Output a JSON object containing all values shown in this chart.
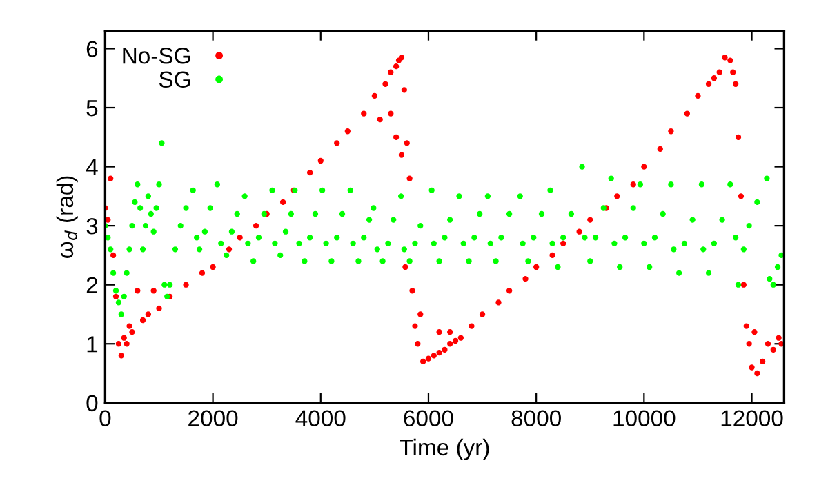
{
  "chart_data": {
    "type": "scatter",
    "xlabel": "Time (yr)",
    "ylabel": "ω$_{d}$ (rad)",
    "xlim": [
      0,
      12600
    ],
    "ylim": [
      0,
      6.3
    ],
    "xticks": [
      0,
      2000,
      4000,
      6000,
      8000,
      10000,
      12000
    ],
    "yticks": [
      0,
      1,
      2,
      3,
      4,
      5,
      6
    ],
    "grid": false,
    "legend": "top left",
    "marker": "circle",
    "series": [
      {
        "name": "No-SG",
        "color": "#ff0000",
        "x": [
          0,
          50,
          100,
          150,
          200,
          250,
          300,
          350,
          400,
          450,
          500,
          600,
          700,
          800,
          900,
          1000,
          1200,
          1500,
          1800,
          2000,
          2300,
          2500,
          2800,
          3000,
          3300,
          3500,
          3800,
          4000,
          4300,
          4500,
          4800,
          5000,
          5100,
          5200,
          5300,
          5400,
          5450,
          5500,
          5300,
          5400,
          5500,
          5550,
          5600,
          5650,
          5570,
          5700,
          5750,
          5800,
          5850,
          5900,
          6000,
          6100,
          6200,
          6300,
          6400,
          6500,
          6200,
          6400,
          6600,
          6800,
          7000,
          7300,
          7500,
          7800,
          8000,
          8300,
          8500,
          8800,
          9000,
          9300,
          9500,
          9800,
          10000,
          10300,
          10500,
          10800,
          11000,
          11200,
          11300,
          11400,
          11500,
          11600,
          11650,
          11700,
          11750,
          11800,
          11850,
          11900,
          11950,
          12000,
          12050,
          12100,
          12200,
          12300,
          12400,
          12500,
          12550
        ],
        "values": [
          3.3,
          3.1,
          3.8,
          2.5,
          1.8,
          1.0,
          0.8,
          1.1,
          1.0,
          1.3,
          1.2,
          1.9,
          1.4,
          1.5,
          1.9,
          1.6,
          1.8,
          2.0,
          2.2,
          2.3,
          2.6,
          2.8,
          3.0,
          3.2,
          3.4,
          3.6,
          3.9,
          4.1,
          4.4,
          4.6,
          4.9,
          5.2,
          4.8,
          5.4,
          4.9,
          5.7,
          5.8,
          5.85,
          5.6,
          4.5,
          4.2,
          5.3,
          4.4,
          3.8,
          2.3,
          1.9,
          1.3,
          1.0,
          1.5,
          0.7,
          0.75,
          0.8,
          0.85,
          0.9,
          1.0,
          1.05,
          1.2,
          1.2,
          1.1,
          1.3,
          1.5,
          1.7,
          1.9,
          2.1,
          2.3,
          2.5,
          2.7,
          2.9,
          3.1,
          3.3,
          3.5,
          3.7,
          4.0,
          4.3,
          4.6,
          4.9,
          5.2,
          5.4,
          5.5,
          5.6,
          5.85,
          5.8,
          5.6,
          5.4,
          4.5,
          3.5,
          2.0,
          1.3,
          1.0,
          0.6,
          1.2,
          0.5,
          0.7,
          1.0,
          0.9,
          1.1,
          1.0
        ]
      },
      {
        "name": "SG",
        "color": "#00ff00",
        "x": [
          0,
          50,
          100,
          150,
          200,
          250,
          300,
          350,
          400,
          450,
          500,
          550,
          600,
          650,
          700,
          750,
          800,
          850,
          900,
          950,
          1000,
          1050,
          1100,
          1150,
          1200,
          1300,
          1400,
          1500,
          1630,
          1700,
          1750,
          1850,
          1950,
          2080,
          2150,
          2250,
          2350,
          2450,
          2590,
          2650,
          2750,
          2850,
          2950,
          3100,
          3150,
          3250,
          3350,
          3450,
          3520,
          3600,
          3700,
          3800,
          3900,
          4030,
          4100,
          4200,
          4300,
          4400,
          4550,
          4600,
          4700,
          4800,
          4900,
          4980,
          5050,
          5150,
          5250,
          5350,
          5490,
          5550,
          5650,
          5750,
          5850,
          6060,
          6100,
          6200,
          6300,
          6400,
          6570,
          6650,
          6750,
          6850,
          6950,
          7100,
          7150,
          7250,
          7350,
          7500,
          7700,
          7750,
          7850,
          7950,
          8100,
          8260,
          8300,
          8400,
          8500,
          8650,
          8850,
          8900,
          9000,
          9100,
          9250,
          9390,
          9450,
          9550,
          9650,
          9800,
          9930,
          10000,
          10100,
          10200,
          10350,
          10500,
          10550,
          10650,
          10750,
          10900,
          11070,
          11100,
          11200,
          11300,
          11450,
          11600,
          11700,
          11750,
          11850,
          11950,
          12100,
          12280,
          12330,
          12400,
          12480,
          12550
        ],
        "values": [
          3.0,
          2.8,
          2.6,
          2.2,
          1.9,
          1.7,
          1.5,
          1.8,
          2.2,
          2.6,
          3.0,
          3.4,
          3.7,
          3.3,
          2.6,
          3.0,
          3.5,
          3.2,
          2.9,
          3.3,
          3.7,
          4.4,
          2.0,
          1.8,
          2.0,
          2.6,
          3.0,
          3.3,
          3.6,
          2.8,
          2.6,
          2.9,
          3.3,
          3.7,
          2.7,
          2.5,
          2.9,
          3.2,
          3.5,
          2.7,
          2.4,
          2.8,
          3.2,
          3.6,
          2.7,
          2.5,
          2.9,
          3.2,
          3.6,
          2.7,
          2.4,
          2.8,
          3.2,
          3.6,
          2.7,
          2.4,
          2.8,
          3.2,
          3.6,
          2.7,
          2.4,
          2.8,
          3.1,
          3.3,
          2.6,
          2.4,
          2.7,
          3.1,
          3.5,
          2.6,
          2.4,
          2.7,
          3.0,
          3.6,
          2.7,
          2.4,
          2.8,
          3.1,
          3.5,
          2.7,
          2.4,
          2.8,
          3.2,
          3.5,
          2.7,
          2.4,
          2.8,
          3.2,
          3.5,
          2.7,
          2.4,
          2.8,
          3.2,
          3.6,
          2.7,
          2.3,
          2.8,
          3.2,
          4.0,
          2.8,
          2.4,
          2.8,
          3.3,
          3.8,
          2.7,
          2.3,
          2.8,
          3.3,
          3.7,
          2.7,
          2.3,
          2.8,
          3.2,
          3.7,
          2.6,
          2.2,
          2.7,
          3.1,
          3.7,
          2.6,
          2.2,
          2.7,
          3.1,
          3.7,
          2.8,
          2.0,
          2.6,
          3.0,
          3.4,
          3.8,
          2.1,
          2.0,
          2.3,
          2.5
        ]
      }
    ]
  }
}
